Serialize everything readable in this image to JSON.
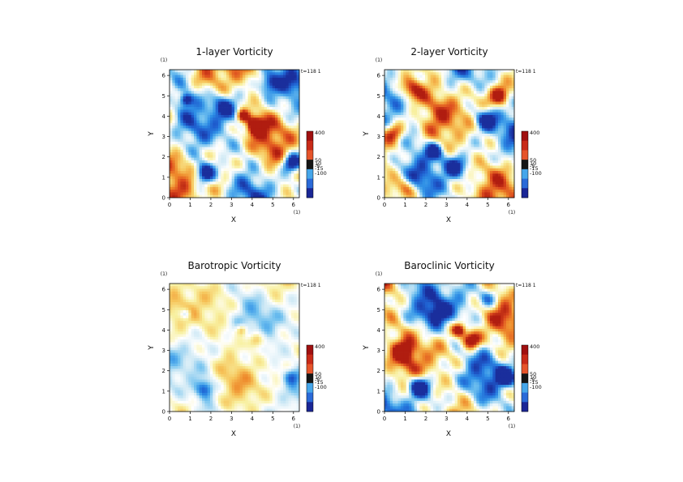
{
  "figure": {
    "colorbar_labels": [
      "400",
      "50",
      "10",
      "-5",
      "-15",
      "-100"
    ],
    "colormap": [
      "#1a2e9c",
      "#1f5fd0",
      "#2e8fe6",
      "#6fc0ef",
      "#cfe9f5",
      "#ffffff",
      "#f8f0a0",
      "#f6c45a",
      "#ee8a2c",
      "#dc4a1e",
      "#b01d10"
    ],
    "colorbar_colors": [
      "#1a2696",
      "#2a6ad8",
      "#45a6ea",
      "#151515",
      "#e6542a",
      "#c82a18",
      "#a01010"
    ]
  },
  "chart_data": [
    {
      "type": "heatmap",
      "title": "1-layer Vorticity",
      "xlabel": "X",
      "ylabel": "Y",
      "xunit": "(1)",
      "yunit": "(1)",
      "time_label": "t=118 1",
      "xlim": [
        0,
        6.2832
      ],
      "ylim": [
        0,
        6.2832
      ],
      "xticks": [
        0,
        1,
        2,
        3,
        4,
        5,
        6
      ],
      "yticks": [
        0,
        1,
        2,
        3,
        4,
        5,
        6
      ],
      "colorbar_ticks": [
        400,
        50,
        10,
        -5,
        -15,
        -100
      ],
      "vortices": [
        {
          "x": 4.15,
          "y": 3.5,
          "strength": 1.0,
          "radius": 0.45
        },
        {
          "x": 3.55,
          "y": 4.0,
          "strength": 0.8,
          "radius": 0.3
        },
        {
          "x": 1.7,
          "y": 1.2,
          "strength": -1.0,
          "radius": 0.5
        },
        {
          "x": 5.9,
          "y": 1.7,
          "strength": -0.95,
          "radius": 0.45
        },
        {
          "x": 0.8,
          "y": 4.8,
          "strength": -0.7,
          "radius": 0.3
        },
        {
          "x": 2.6,
          "y": 4.5,
          "strength": -0.5,
          "radius": 0.6
        },
        {
          "x": 4.8,
          "y": 5.6,
          "strength": -0.6,
          "radius": 0.5
        }
      ]
    },
    {
      "type": "heatmap",
      "title": "2-layer Vorticity",
      "xlabel": "X",
      "ylabel": "Y",
      "xunit": "(1)",
      "yunit": "(1)",
      "time_label": "t=118 1",
      "xlim": [
        0,
        6.2832
      ],
      "ylim": [
        0,
        6.2832
      ],
      "xticks": [
        0,
        1,
        2,
        3,
        4,
        5,
        6
      ],
      "yticks": [
        0,
        1,
        2,
        3,
        4,
        5,
        6
      ],
      "colorbar_ticks": [
        400,
        50,
        10,
        -5,
        -15,
        -100
      ],
      "vortices": [
        {
          "x": 4.9,
          "y": 3.8,
          "strength": -0.8,
          "radius": 0.55
        },
        {
          "x": 5.6,
          "y": 5.0,
          "strength": 0.85,
          "radius": 0.5
        },
        {
          "x": 1.3,
          "y": 5.3,
          "strength": 0.7,
          "radius": 0.6
        },
        {
          "x": 0.5,
          "y": 3.2,
          "strength": 0.6,
          "radius": 0.45
        },
        {
          "x": 2.4,
          "y": 2.3,
          "strength": -0.7,
          "radius": 0.4
        },
        {
          "x": 3.4,
          "y": 1.5,
          "strength": -0.6,
          "radius": 0.5
        },
        {
          "x": 1.0,
          "y": 0.4,
          "strength": 0.55,
          "radius": 0.5
        }
      ]
    },
    {
      "type": "heatmap",
      "title": "Barotropic Vorticity",
      "xlabel": "X",
      "ylabel": "Y",
      "xunit": "(1)",
      "yunit": "(1)",
      "time_label": "t=118 1",
      "xlim": [
        0,
        6.2832
      ],
      "ylim": [
        0,
        6.2832
      ],
      "xticks": [
        0,
        1,
        2,
        3,
        4,
        5,
        6
      ],
      "yticks": [
        0,
        1,
        2,
        3,
        4,
        5,
        6
      ],
      "colorbar_ticks": [
        400,
        50,
        10,
        -5,
        -15,
        -100
      ],
      "vortices": [
        {
          "x": 4.2,
          "y": 3.5,
          "strength": 1.0,
          "radius": 0.42
        },
        {
          "x": 3.5,
          "y": 4.0,
          "strength": 0.75,
          "radius": 0.28
        },
        {
          "x": 1.7,
          "y": 1.1,
          "strength": -1.0,
          "radius": 0.45
        },
        {
          "x": 5.9,
          "y": 1.7,
          "strength": -0.9,
          "radius": 0.4
        },
        {
          "x": 0.8,
          "y": 4.8,
          "strength": -0.6,
          "radius": 0.25
        }
      ]
    },
    {
      "type": "heatmap",
      "title": "Baroclinic Vorticity",
      "xlabel": "X",
      "ylabel": "Y",
      "xunit": "(1)",
      "yunit": "(1)",
      "time_label": "t=118 1",
      "xlim": [
        0,
        6.2832
      ],
      "ylim": [
        0,
        6.2832
      ],
      "xticks": [
        0,
        1,
        2,
        3,
        4,
        5,
        6
      ],
      "yticks": [
        0,
        1,
        2,
        3,
        4,
        5,
        6
      ],
      "colorbar_ticks": [
        400,
        50,
        10,
        -5,
        -15,
        -100
      ],
      "vortices": [
        {
          "x": 4.2,
          "y": 3.5,
          "strength": 0.9,
          "radius": 0.45
        },
        {
          "x": 3.6,
          "y": 4.0,
          "strength": 0.8,
          "radius": 0.3
        },
        {
          "x": 1.7,
          "y": 1.2,
          "strength": -1.0,
          "radius": 0.5
        },
        {
          "x": 5.9,
          "y": 1.7,
          "strength": -0.9,
          "radius": 0.45
        },
        {
          "x": 2.6,
          "y": 4.8,
          "strength": -0.6,
          "radius": 0.6
        },
        {
          "x": 5.0,
          "y": 5.5,
          "strength": -0.55,
          "radius": 0.5
        },
        {
          "x": 1.0,
          "y": 3.0,
          "strength": 0.5,
          "radius": 0.5
        }
      ]
    }
  ]
}
